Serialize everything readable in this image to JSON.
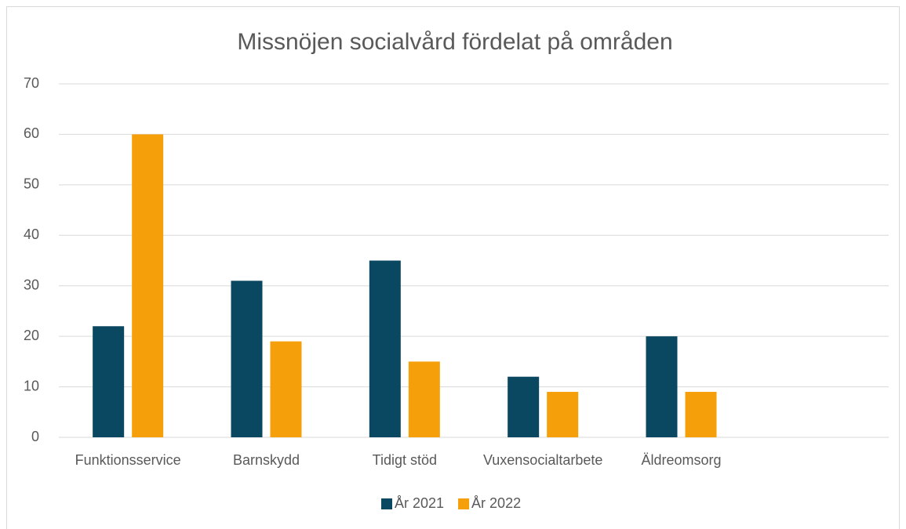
{
  "chart_data": {
    "type": "bar",
    "title": "Missnöjen socialvård fördelat på områden",
    "categories": [
      "Funktionsservice",
      "Barnskydd",
      "Tidigt stöd",
      "Vuxensocialtarbete",
      "Äldreomsorg",
      null
    ],
    "series": [
      {
        "name": "År 2021",
        "color": "#0a4760",
        "values": [
          22,
          31,
          35,
          12,
          20,
          null
        ]
      },
      {
        "name": "År 2022",
        "color": "#f5a00a",
        "values": [
          60,
          19,
          15,
          9,
          9,
          null
        ]
      }
    ],
    "ylim": [
      0,
      70
    ],
    "yticks": [
      0,
      10,
      20,
      30,
      40,
      50,
      60,
      70
    ],
    "grid": true,
    "legend": "bottom"
  }
}
